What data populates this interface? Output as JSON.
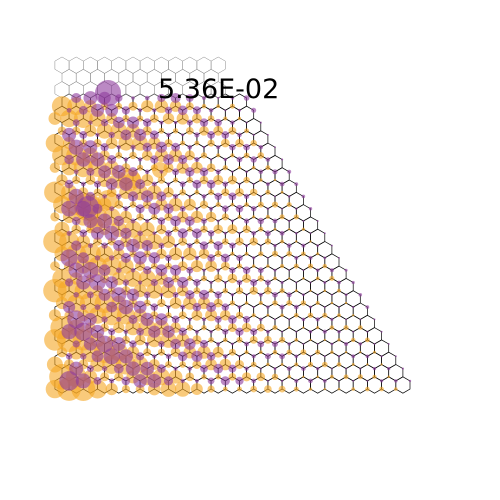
{
  "legend": {
    "value_label": "5.36E-02"
  },
  "colors": {
    "background": "#ffffff",
    "grid_hex_outer": "#888888",
    "grid_hex_inner": "#000000",
    "series_orange": "#f5a623",
    "series_purple": "#8e3a9c"
  },
  "diagram": {
    "type": "hexagonal-lattice-bubble-overlay",
    "shape": "right-triangle",
    "series": [
      {
        "color_name": "orange",
        "meaning": ""
      },
      {
        "color_name": "purple",
        "meaning": ""
      }
    ]
  }
}
